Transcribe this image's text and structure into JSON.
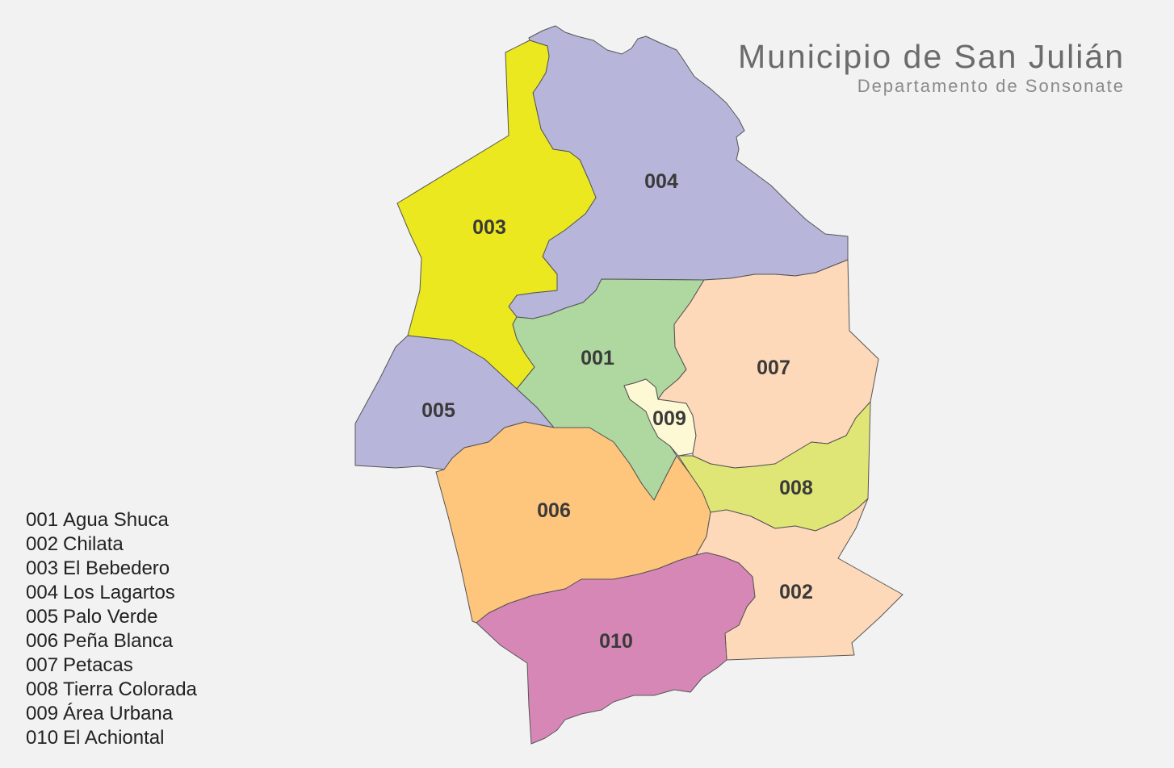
{
  "title": "Municipio de San Julián",
  "subtitle": "Departamento de Sonsonate",
  "colors": {
    "background": "#f2f2f2",
    "r001": "#afd7a0",
    "r002": "#fdd9b9",
    "r003": "#ebe81f",
    "r004": "#b7b5da",
    "r005": "#b7b5da",
    "r006": "#fec57c",
    "r007": "#fdd9b9",
    "r008": "#e0e676",
    "r009": "#fdf9d4",
    "r010": "#d787b6"
  },
  "regions": [
    {
      "code": "001",
      "name": "Agua Shuca"
    },
    {
      "code": "002",
      "name": "Chilata"
    },
    {
      "code": "003",
      "name": "El Bebedero"
    },
    {
      "code": "004",
      "name": "Los Lagartos"
    },
    {
      "code": "005",
      "name": "Palo Verde"
    },
    {
      "code": "006",
      "name": "Peña Blanca"
    },
    {
      "code": "007",
      "name": "Petacas"
    },
    {
      "code": "008",
      "name": "Tierra Colorada"
    },
    {
      "code": "009",
      "name": "Área Urbana"
    },
    {
      "code": "010",
      "name": "El Achiontal"
    }
  ]
}
